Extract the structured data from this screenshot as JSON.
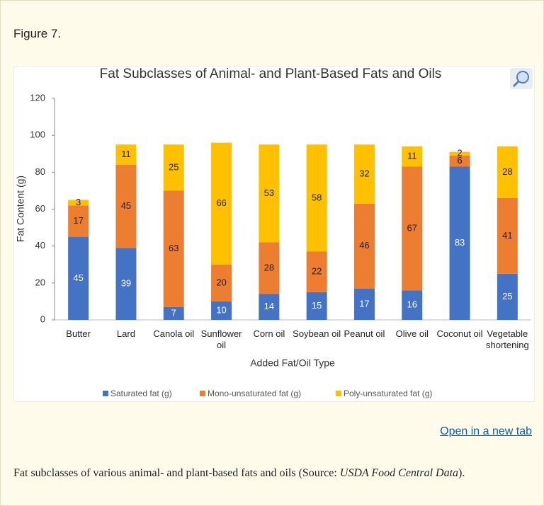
{
  "figure_label": "Figure 7.",
  "chart_data": {
    "type": "stacked_bar",
    "title": "Fat Subclasses  of Animal- and Plant-Based Fats and Oils",
    "x_label": "Added Fat/Oil Type",
    "y_label": "Fat Content (g)",
    "categories": [
      "Butter",
      "Lard",
      "Canola oil",
      "Sunflower oil",
      "Corn oil",
      "Soybean oil",
      "Peanut oil",
      "Olive oil",
      "Coconut oil",
      "Vegetable shortening"
    ],
    "series": [
      {
        "name": "Saturated fat (g)",
        "color": "#4472c4",
        "values": [
          45,
          39,
          7,
          10,
          14,
          15,
          17,
          16,
          83,
          25
        ]
      },
      {
        "name": "Mono-unsaturated fat (g)",
        "color": "#ed7d31",
        "values": [
          17,
          45,
          63,
          20,
          28,
          22,
          46,
          67,
          6,
          41
        ]
      },
      {
        "name": "Poly-unsaturated fat (g)",
        "color": "#ffc000",
        "values": [
          3,
          11,
          25,
          66,
          53,
          58,
          32,
          11,
          2,
          28
        ]
      }
    ],
    "ylim": [
      0,
      120
    ],
    "yticks": [
      0,
      20,
      40,
      60,
      80,
      100,
      120
    ],
    "grid": false,
    "legend": "bottom"
  },
  "link": "Open in a new tab",
  "caption": {
    "before": "Fat subclasses of various animal- and plant-based fats and oils (Source: ",
    "source": "USDA Food Central Data",
    "after": ")."
  }
}
